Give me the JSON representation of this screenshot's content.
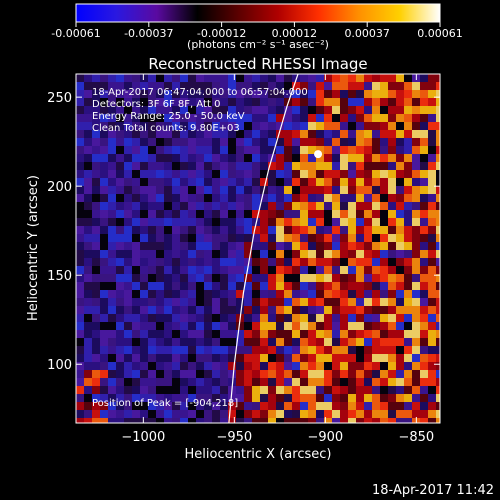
{
  "colorbar": {
    "tick_labels": [
      "-0.00061",
      "-0.00037",
      "-0.00012",
      "0.00012",
      "0.00037",
      "0.00061"
    ],
    "unit_label": "(photons cm⁻² s⁻¹ asec⁻²)",
    "palette": [
      "#0000ff",
      "#2a18e0",
      "#5a0aa0",
      "#000000",
      "#5a0000",
      "#b00000",
      "#ff3000",
      "#ff9000",
      "#ffd000",
      "#ffffff"
    ]
  },
  "chart_data": {
    "type": "heatmap",
    "title": "Reconstructed RHESSI Image",
    "xlabel": "Heliocentric X (arcsec)",
    "ylabel": "Heliocentric Y (arcsec)",
    "xlim": [
      -1037,
      -837
    ],
    "ylim": [
      67,
      263
    ],
    "x_ticks": [
      -1000,
      -950,
      -900,
      -850
    ],
    "x_tick_labels": [
      "−1000",
      "−950",
      "−900",
      "−850"
    ],
    "y_ticks": [
      100,
      150,
      200,
      250
    ],
    "y_tick_labels": [
      "100",
      "150",
      "200",
      "250"
    ],
    "limb_curve": [
      [
        -953,
        67
      ],
      [
        -950,
        100
      ],
      [
        -945,
        140
      ],
      [
        -939,
        175
      ],
      [
        -931,
        210
      ],
      [
        -921,
        245
      ],
      [
        -915,
        263
      ]
    ],
    "peak": [
      -904,
      218
    ],
    "annotations": [
      "18-Apr-2017 06:47:04.000 to 06:57:04.000",
      "Detectors: 3F 6F 8F, Att 0",
      "Energy Range: 25.0 - 50.0 keV",
      "Clean    Total counts: 9.80E+03"
    ],
    "peak_label": "Position of Peak = [-904,218]"
  },
  "footer": {
    "timestamp": "18-Apr-2017 11:42"
  }
}
